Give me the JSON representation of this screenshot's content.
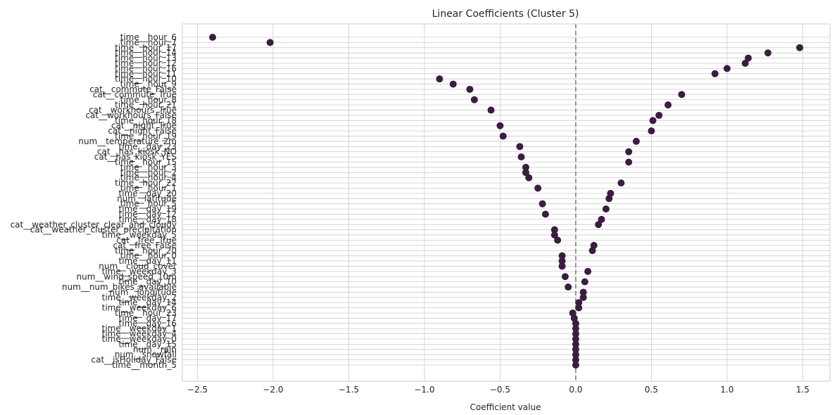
{
  "chart_data": {
    "type": "scatter",
    "title": "Linear Coefficients (Cluster 5)",
    "xlabel": "Coefficient value",
    "ylabel": "",
    "xlim": [
      -2.6,
      1.68
    ],
    "xticks": [
      -2.5,
      -2.0,
      -1.5,
      -1.0,
      -0.5,
      0.0,
      0.5,
      1.0,
      1.5
    ],
    "xtick_labels": [
      "−2.5",
      "−2.0",
      "−1.5",
      "−1.0",
      "−0.5",
      "0.0",
      "0.5",
      "1.0",
      "1.5"
    ],
    "grid": true,
    "reference_line": {
      "x": 0.0,
      "style": "dashed",
      "color": "#808080"
    },
    "marker_color": "#3b1d40",
    "labels": [
      "time__hour_6",
      "time__hour_7",
      "time__hour_17",
      "time__hour_14",
      "time__hour_13",
      "time__hour_12",
      "time__hour_16",
      "time__hour_11",
      "time__hour_10",
      "time__hour_9",
      "cat__commute_False",
      "cat__commute_True",
      "time__hour_8",
      "time__hour_21",
      "cat__workhours_True",
      "cat__workhours_False",
      "time__hour_18",
      "cat__night_True",
      "cat__night_False",
      "time__hour_19",
      "num__temperature_2m",
      "time__day_23",
      "cat__has_kiosk_NO",
      "cat__has_kiosk_YES",
      "time__hour_15",
      "time__hour_3",
      "time__hour_2",
      "time__hour_4",
      "time__hour_22",
      "time__hour_1",
      "time__day_20",
      "num__latitude",
      "time__hour_5",
      "time__day_19",
      "time__day_12",
      "time__day_18",
      "cat__weather_cluster_clear_and_cloudy",
      "cat__weather_cluster_precipitation",
      "time__weekday_5",
      "cat__free_True",
      "cat__free_False",
      "time__hour_20",
      "time__hour_0",
      "time__day_11",
      "num__cloud_cover",
      "time__weekday_3",
      "num__wind_speed_10m",
      "time__day_10",
      "num__num_bikes_available",
      "num__longitude",
      "time__weekday_2",
      "time__day_14",
      "time__weekday_6",
      "time__hour_23",
      "time__day_17",
      "time__day_16",
      "time__weekday_1",
      "time__weekday_4",
      "time__weekday_0",
      "time__day_15",
      "num__rain",
      "num__snowfall",
      "cat__isHoliday_False",
      "time__month_5"
    ],
    "values": [
      -2.4,
      -2.02,
      1.48,
      1.27,
      1.14,
      1.12,
      1.0,
      0.92,
      -0.9,
      -0.81,
      -0.7,
      0.7,
      -0.67,
      0.61,
      -0.56,
      0.55,
      0.51,
      -0.5,
      0.5,
      -0.48,
      0.4,
      -0.37,
      0.35,
      -0.36,
      0.35,
      -0.33,
      -0.33,
      -0.31,
      0.3,
      -0.25,
      0.23,
      0.22,
      -0.22,
      0.2,
      -0.2,
      0.17,
      0.15,
      -0.14,
      -0.14,
      -0.12,
      0.12,
      0.11,
      -0.09,
      -0.09,
      -0.09,
      0.08,
      -0.07,
      0.06,
      -0.05,
      0.05,
      0.05,
      0.02,
      0.02,
      -0.02,
      -0.01,
      0.0,
      0.0,
      0.0,
      0.0,
      0.0,
      0.0,
      0.0,
      0.0,
      0.0
    ]
  }
}
